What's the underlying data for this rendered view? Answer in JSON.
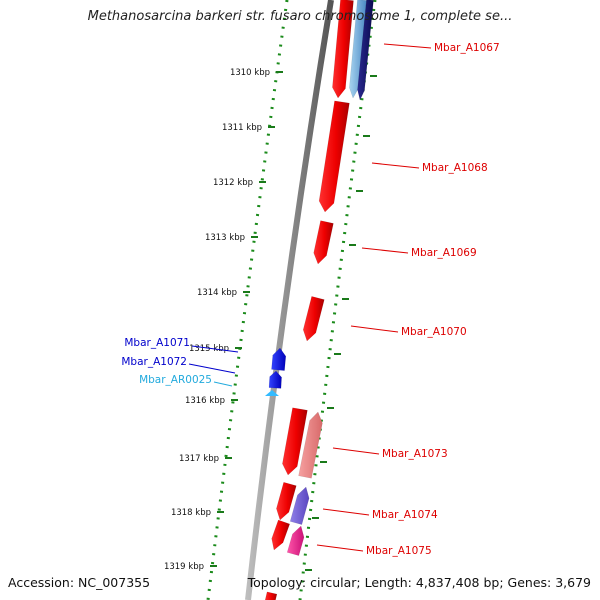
{
  "title": "Methanosarcina barkeri str. fusaro chromosome 1, complete se...",
  "footer": {
    "accession": "Accession: NC_007355",
    "topology": "Topology: circular; Length: 4,837,408 bp; Genes: 3,679"
  },
  "ruler": {
    "unit": "kbp",
    "ticks": [
      {
        "label": "1310 kbp"
      },
      {
        "label": "1311 kbp"
      },
      {
        "label": "1312 kbp"
      },
      {
        "label": "1313 kbp"
      },
      {
        "label": "1314 kbp"
      },
      {
        "label": "1315 kbp"
      },
      {
        "label": "1316 kbp"
      },
      {
        "label": "1317 kbp"
      },
      {
        "label": "1318 kbp"
      },
      {
        "label": "1319 kbp"
      }
    ]
  },
  "gene_labels": [
    {
      "name": "Mbar_A1067",
      "color": "#dd0000"
    },
    {
      "name": "Mbar_A1068",
      "color": "#dd0000"
    },
    {
      "name": "Mbar_A1069",
      "color": "#dd0000"
    },
    {
      "name": "Mbar_A1070",
      "color": "#dd0000"
    },
    {
      "name": "Mbar_A1071",
      "color": "#0000cc"
    },
    {
      "name": "Mbar_A1072",
      "color": "#0000cc"
    },
    {
      "name": "Mbar_AR0025",
      "color": "#22aadd"
    },
    {
      "name": "Mbar_A1073",
      "color": "#dd0000"
    },
    {
      "name": "Mbar_A1074",
      "color": "#dd0000"
    },
    {
      "name": "Mbar_A1075",
      "color": "#dd0000"
    }
  ]
}
